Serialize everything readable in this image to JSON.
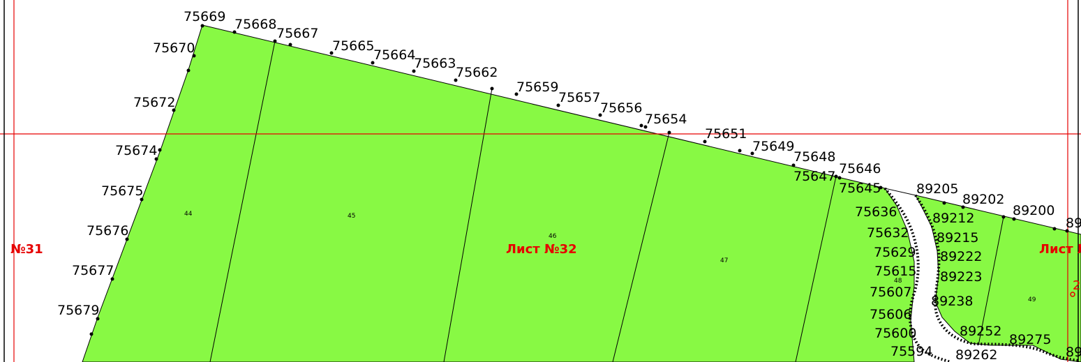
{
  "colors": {
    "parcel_fill": "#88f944",
    "boundary": "#000000",
    "sheet_grid": "#e60000",
    "label": "#000000"
  },
  "sheets": {
    "left": "№31",
    "center": "Лист №32",
    "right": "Лист №",
    "right_marker": "2"
  },
  "parcels": [
    "44",
    "45",
    "46",
    "47",
    "48",
    "49"
  ],
  "points": {
    "p75669": "75669",
    "p75668": "75668",
    "p75667": "75667",
    "p75670": "75670",
    "p75665": "75665",
    "p75664": "75664",
    "p75663": "75663",
    "p75662": "75662",
    "p75672": "75672",
    "p75659": "75659",
    "p75657": "75657",
    "p75656": "75656",
    "p75654": "75654",
    "p75674": "75674",
    "p75651": "75651",
    "p75649": "75649",
    "p75648": "75648",
    "p75646": "75646",
    "p75647": "75647",
    "p75645": "75645",
    "p75675": "75675",
    "p75676": "75676",
    "p75677": "75677",
    "p75679": "75679",
    "p75636": "75636",
    "p75632": "75632",
    "p75629": "75629",
    "p75615": "75615",
    "p75607": "75607",
    "p75606": "75606",
    "p75600": "75600",
    "p75594": "75594",
    "p89205": "89205",
    "p89202": "89202",
    "p89200": "89200",
    "p89212": "89212",
    "p89215": "89215",
    "p89222": "89222",
    "p89223": "89223",
    "p89238": "89238",
    "p89252": "89252",
    "p89275": "89275",
    "p89262": "89262",
    "p89_edge1": "89",
    "p89_edge2": "89"
  }
}
